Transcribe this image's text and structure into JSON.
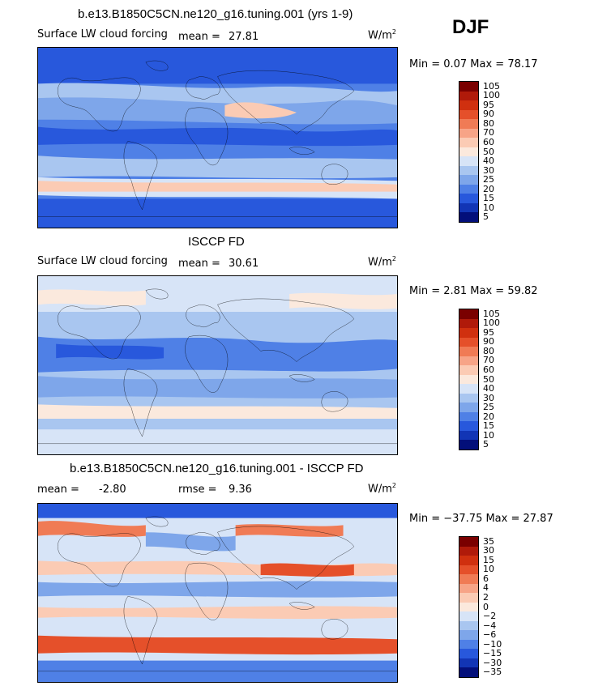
{
  "season": "DJF",
  "panels": [
    {
      "title": "b.e13.B1850C5CN.ne120_g16.tuning.001 (yrs 1-9)",
      "variable": "Surface LW cloud forcing",
      "stat1_label": "mean =",
      "stat1_value": "27.81",
      "stat2_label": "",
      "stat2_value": "",
      "units": "W/m",
      "units_exp": "2",
      "minmax": "Min =   0.07 Max =  78.17",
      "scale": "abs"
    },
    {
      "title": "ISCCP FD",
      "variable": "Surface LW cloud forcing",
      "stat1_label": "mean =",
      "stat1_value": "30.61",
      "stat2_label": "",
      "stat2_value": "",
      "units": "W/m",
      "units_exp": "2",
      "minmax": "Min =   2.81 Max =  59.82",
      "scale": "abs"
    },
    {
      "title": "b.e13.B1850C5CN.ne120_g16.tuning.001 - ISCCP FD",
      "variable": "",
      "stat1_label": "mean =",
      "stat1_value": "-2.80",
      "stat2_label": "rmse =",
      "stat2_value": "9.36",
      "units": "W/m",
      "units_exp": "2",
      "minmax": "Min = −37.75 Max =  27.87",
      "scale": "diff"
    }
  ],
  "colorbars": {
    "abs": {
      "levels": [
        "105",
        "100",
        "95",
        "90",
        "80",
        "70",
        "60",
        "50",
        "40",
        "30",
        "25",
        "20",
        "15",
        "10",
        "5"
      ],
      "colors": [
        "#7a0000",
        "#b01a0a",
        "#d0300f",
        "#e5502a",
        "#f07b55",
        "#f7a487",
        "#fbcbb4",
        "#fbe9dd",
        "#d7e4f7",
        "#a9c6f0",
        "#7ea6ea",
        "#4f80e6",
        "#2858dc",
        "#1235b5",
        "#030f7a"
      ]
    },
    "diff": {
      "levels": [
        "35",
        "30",
        "15",
        "10",
        "6",
        "4",
        "2",
        "0",
        "−2",
        "−4",
        "−6",
        "−10",
        "−15",
        "−30",
        "−35"
      ],
      "colors": [
        "#7a0000",
        "#b01a0a",
        "#d0300f",
        "#e5502a",
        "#f07b55",
        "#f7a487",
        "#fbcbb4",
        "#fbe9dd",
        "#d7e4f7",
        "#a9c6f0",
        "#7ea6ea",
        "#4f80e6",
        "#2858dc",
        "#1235b5",
        "#030f7a"
      ]
    }
  }
}
